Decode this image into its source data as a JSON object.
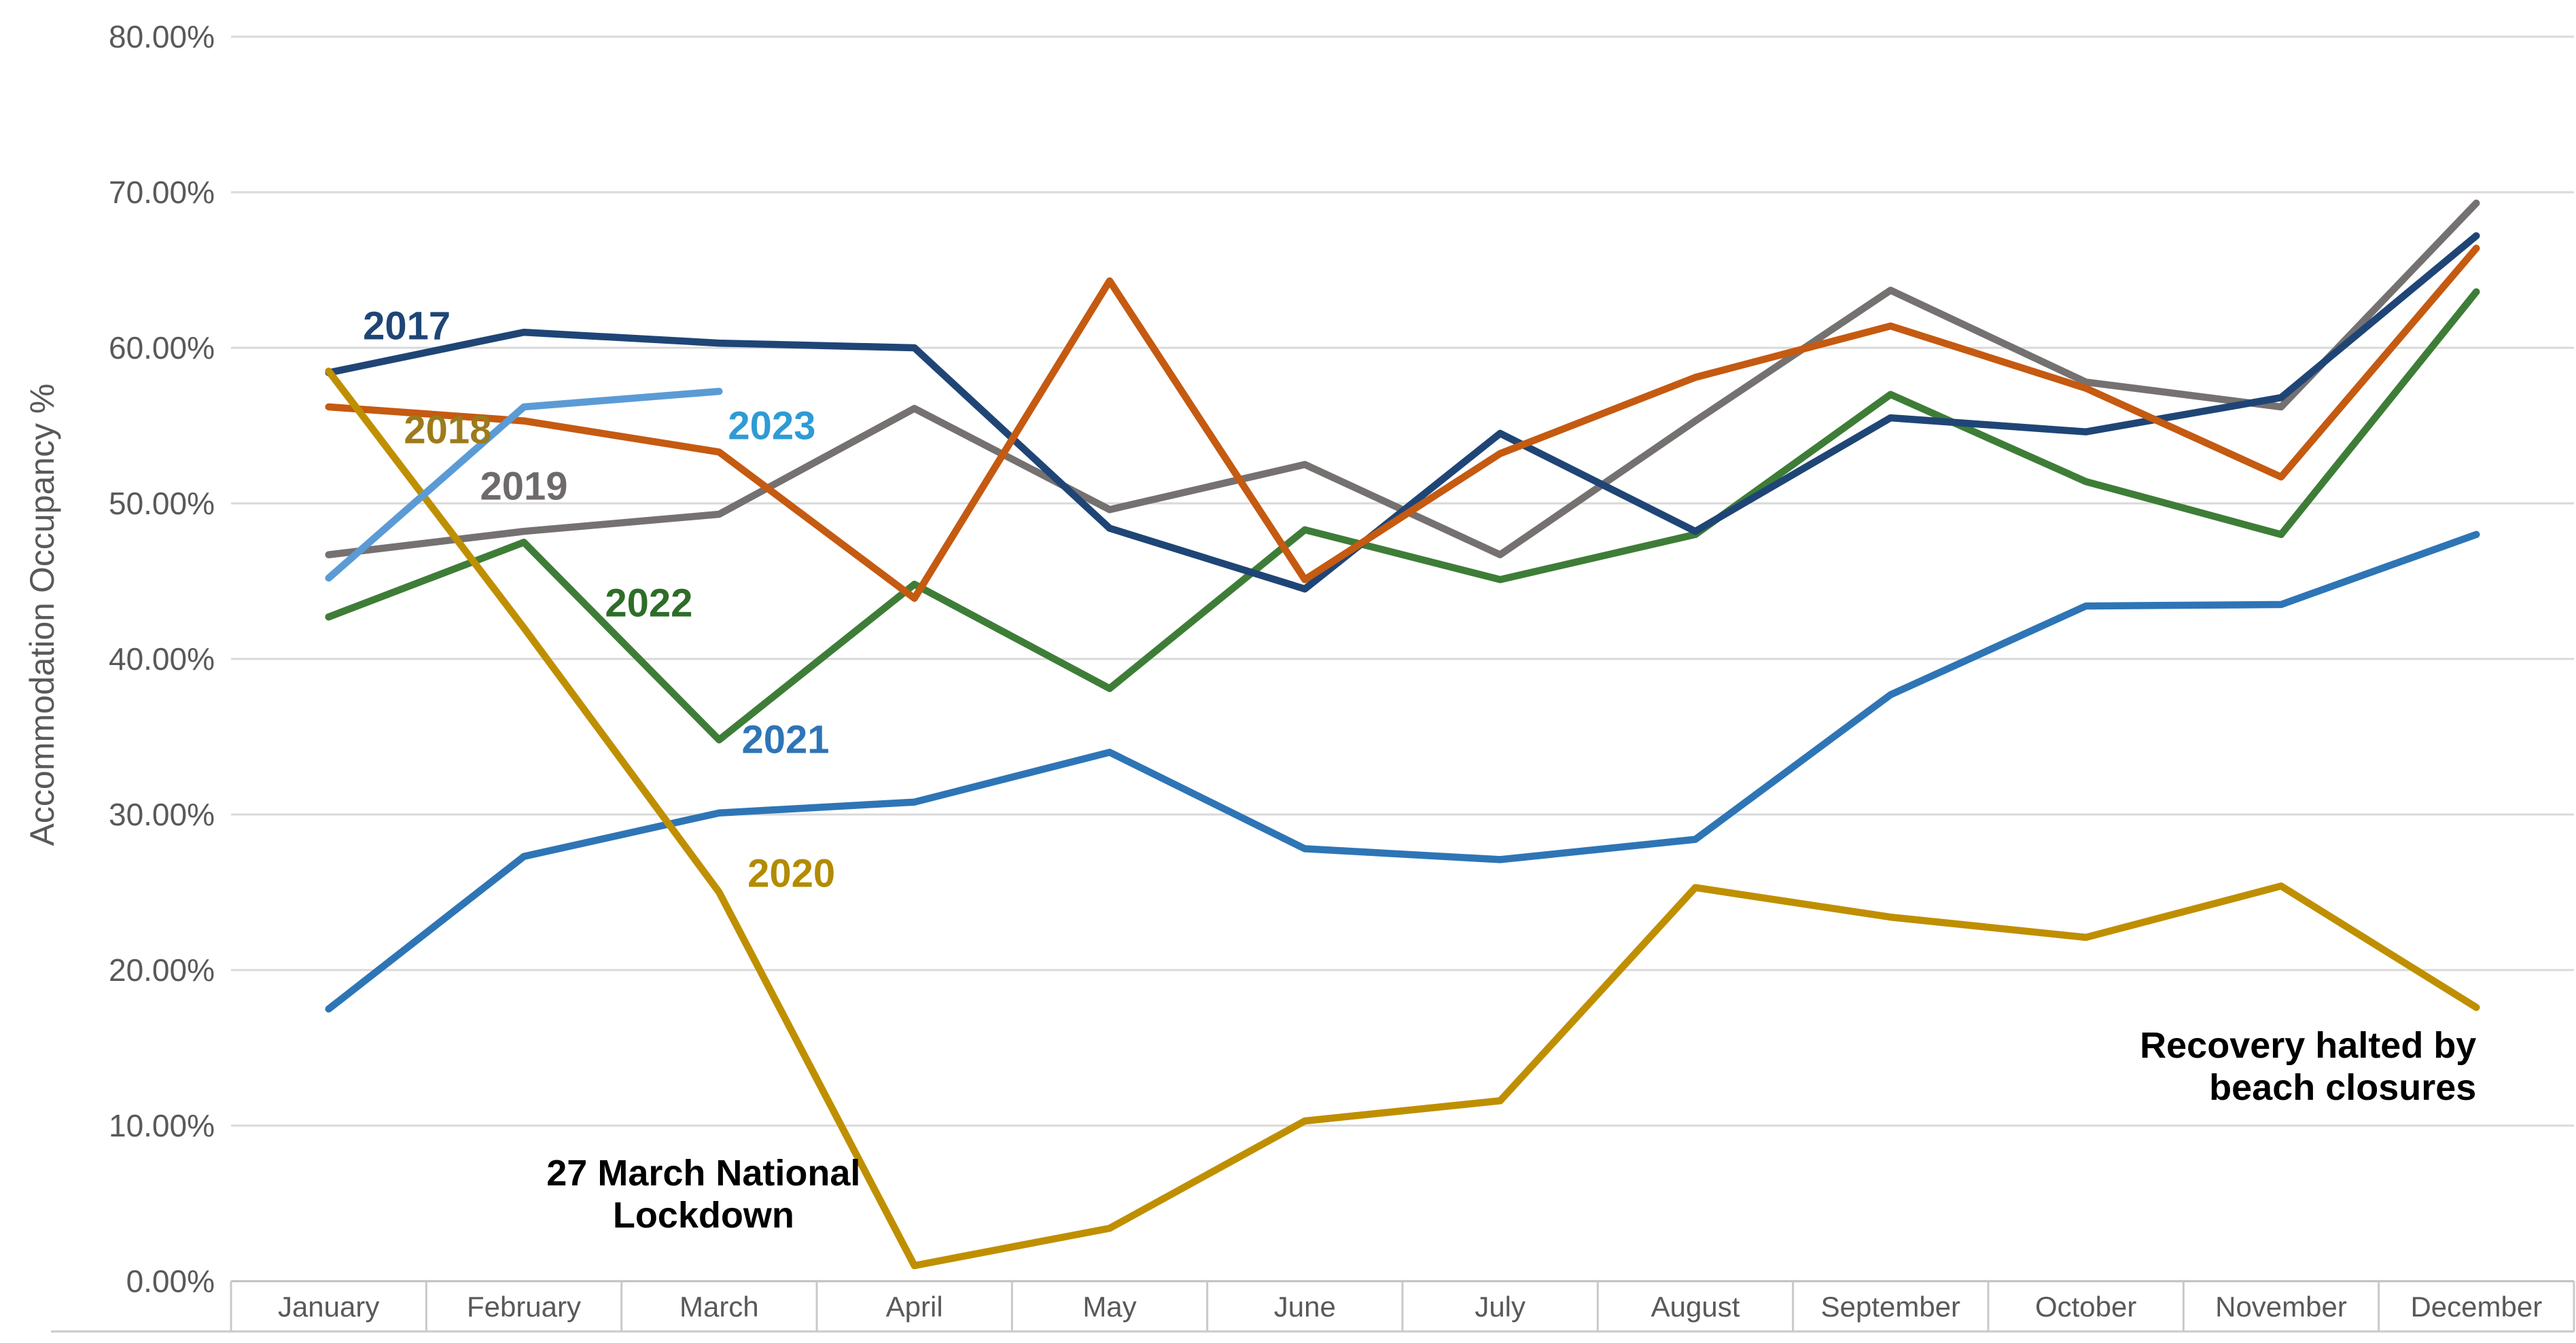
{
  "chart": {
    "y_axis_title": "Accommodation Occupancy %"
  },
  "chart_data": {
    "type": "line",
    "title": "",
    "xlabel": "",
    "ylabel": "Accommodation Occupancy %",
    "ylim": [
      0,
      80
    ],
    "y_tick_step": 10,
    "y_tick_labels": [
      "0.00%",
      "10.00%",
      "20.00%",
      "30.00%",
      "40.00%",
      "50.00%",
      "60.00%",
      "70.00%",
      "80.00%"
    ],
    "grid": true,
    "legend": "inline-series-labels",
    "gridline_color": "#D9D9D9",
    "axis_line_color": "#BFBFBF",
    "tick_label_color": "#595959",
    "categories": [
      "January",
      "February",
      "March",
      "April",
      "May",
      "June",
      "July",
      "August",
      "September",
      "October",
      "November",
      "December"
    ],
    "series": [
      {
        "name": "2017",
        "color": "#1F4576",
        "label_color": "#1F4576",
        "values": [
          58.4,
          61.0,
          60.3,
          60.0,
          48.4,
          44.5,
          54.5,
          48.2,
          55.5,
          54.6,
          56.8,
          67.2
        ],
        "label_anchor": {
          "t": 0.4,
          "v": 61.4
        }
      },
      {
        "name": "2018",
        "color": "#C55A11",
        "label_color": "#9C7B1B",
        "values": [
          56.2,
          55.3,
          53.3,
          43.9,
          64.3,
          45.1,
          53.2,
          58.1,
          61.4,
          57.4,
          51.7,
          66.4
        ],
        "label_anchor": {
          "t": 0.61,
          "v": 54.7
        }
      },
      {
        "name": "2019",
        "color": "#767171",
        "label_color": "#6E6A6A",
        "values": [
          46.7,
          48.2,
          49.3,
          56.1,
          49.6,
          52.5,
          46.7,
          55.3,
          63.7,
          57.8,
          56.2,
          69.3
        ],
        "label_anchor": {
          "t": 1.0,
          "v": 51.1
        }
      },
      {
        "name": "2020",
        "color": "#BF8F00",
        "label_color": "#B38B00",
        "values": [
          58.5,
          42.0,
          25.0,
          1.0,
          3.4,
          10.3,
          11.6,
          25.3,
          23.4,
          22.1,
          25.4,
          17.6
        ],
        "label_anchor": {
          "t": 2.37,
          "v": 26.2
        }
      },
      {
        "name": "2021",
        "color": "#2E75B6",
        "label_color": "#2E75B6",
        "values": [
          17.5,
          27.3,
          30.1,
          30.8,
          34.0,
          27.8,
          27.1,
          28.4,
          37.7,
          43.4,
          43.5,
          48.0
        ],
        "label_anchor": {
          "t": 2.34,
          "v": 34.8
        }
      },
      {
        "name": "2022",
        "color": "#3E7D37",
        "label_color": "#2E6D28",
        "values": [
          42.7,
          47.5,
          34.8,
          44.8,
          38.1,
          48.3,
          45.1,
          48.0,
          57.0,
          51.4,
          48.0,
          63.6
        ],
        "label_anchor": {
          "t": 1.64,
          "v": 43.6
        }
      },
      {
        "name": "2023",
        "color": "#5B9BD5",
        "label_color": "#2E9BD5",
        "values": [
          45.2,
          56.2,
          57.2,
          null,
          null,
          null,
          null,
          null,
          null,
          null,
          null,
          null
        ],
        "label_anchor": {
          "t": 2.27,
          "v": 55.0
        }
      }
    ],
    "annotations": [
      {
        "id": "lockdown",
        "text_lines": [
          "27 March National",
          "Lockdown"
        ],
        "align": "center",
        "t": 1.92,
        "v": 5.6
      },
      {
        "id": "beach-closures",
        "text_lines": [
          "Recovery halted by",
          "beach closures"
        ],
        "align": "right",
        "t": 11.5,
        "v": 13.8
      }
    ]
  }
}
